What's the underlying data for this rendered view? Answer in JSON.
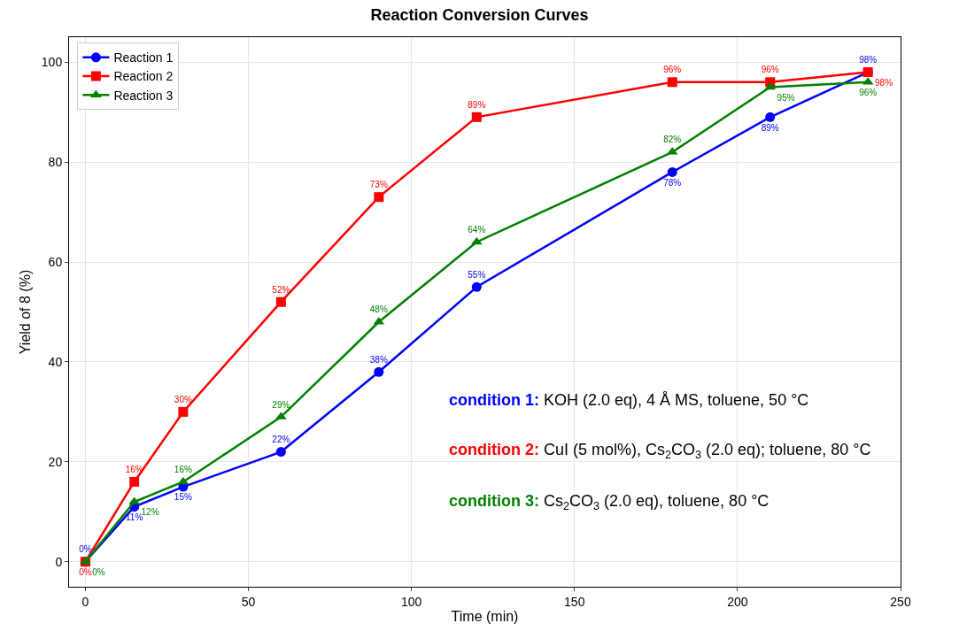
{
  "chart_data": {
    "type": "line",
    "title": "Reaction Conversion Curves",
    "xlabel": "Time (min)",
    "ylabel": "Yield of 8 (%)",
    "x": [
      0,
      15,
      30,
      60,
      90,
      120,
      180,
      210,
      240
    ],
    "series": [
      {
        "name": "Reaction 1",
        "color": "#0000ff",
        "marker": "circle",
        "values": [
          0,
          11,
          15,
          22,
          38,
          55,
          78,
          89,
          98
        ],
        "value_labels": [
          "0%",
          "11%",
          "15%",
          "22%",
          "38%",
          "55%",
          "78%",
          "89%",
          "98%"
        ]
      },
      {
        "name": "Reaction 2",
        "color": "#ff0000",
        "marker": "square",
        "values": [
          0,
          16,
          30,
          52,
          73,
          89,
          96,
          96,
          98
        ],
        "value_labels": [
          "0%",
          "16%",
          "30%",
          "52%",
          "73%",
          "89%",
          "96%",
          "96%",
          "98%"
        ]
      },
      {
        "name": "Reaction 3",
        "color": "#008000",
        "marker": "triangle",
        "values": [
          0,
          12,
          16,
          29,
          48,
          64,
          82,
          95,
          96
        ],
        "value_labels": [
          "0%",
          "12%",
          "16%",
          "29%",
          "48%",
          "64%",
          "82%",
          "95%",
          "96%"
        ]
      }
    ],
    "xlim": [
      -5,
      250
    ],
    "xticks": [
      0,
      50,
      100,
      150,
      200,
      250
    ],
    "ylim": [
      -5,
      105
    ],
    "yticks": [
      0,
      20,
      40,
      60,
      80,
      100
    ],
    "grid": true,
    "legend": "top left",
    "line_style": "solid",
    "annotations": [
      "condition 1: KOH (2.0 eq), 4 Å MS, toluene, 50 °C",
      "condition 2: CuI (5 mol%), Cs$_{2}$CO$_{3}$ (2.0 eq); toluene, 80 °C",
      "condition 3: Cs$_{2}$CO$_{3}$ (2.0 eq), toluene, 80 °C"
    ]
  }
}
